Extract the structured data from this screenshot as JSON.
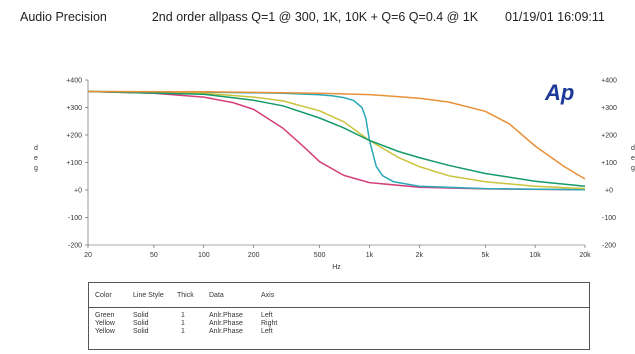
{
  "header": {
    "left": "Audio Precision",
    "title": "2nd order allpass Q=1 @ 300, 1K, 10K + Q=6  Q=0.4 @ 1K",
    "date": "01/19/01 16:09:11"
  },
  "logo": "Ap",
  "chart_data": {
    "type": "line",
    "title": "2nd order allpass Q=1 @ 300, 1K, 10K + Q=6  Q=0.4 @ 1K",
    "xlabel": "Hz",
    "ylabel": "d e g",
    "right_ylabel": "d e g",
    "xscale": "log",
    "xlim": [
      20,
      20000
    ],
    "ylim": [
      -200,
      400
    ],
    "x_ticks": [
      20,
      50,
      100,
      200,
      500,
      1000,
      2000,
      5000,
      10000,
      20000
    ],
    "x_tick_labels": [
      "20",
      "50",
      "100",
      "200",
      "500",
      "1k",
      "2k",
      "5k",
      "10k",
      "20k"
    ],
    "y_ticks": [
      -200,
      -100,
      0,
      100,
      200,
      300,
      400
    ],
    "y_tick_labels": [
      "-200",
      "-100",
      "+0",
      "+100",
      "+200",
      "+300",
      "+400"
    ],
    "right_y_tick_labels": [
      "-200",
      "-100",
      "+0",
      "+100",
      "+200",
      "+300",
      "+400"
    ],
    "grid": false,
    "series": [
      {
        "color": "#d4407a",
        "x": [
          20,
          50,
          100,
          150,
          200,
          300,
          400,
          500,
          700,
          1000,
          2000,
          5000,
          20000
        ],
        "y": [
          358,
          352,
          338,
          318,
          293,
          225,
          158,
          103,
          53,
          27,
          10,
          4,
          1
        ]
      },
      {
        "color": "#2ba8b8",
        "x": [
          20,
          100,
          300,
          500,
          600,
          700,
          800,
          900,
          950,
          1000,
          1100,
          1200,
          1400,
          2000,
          5000,
          20000
        ],
        "y": [
          358,
          356,
          352,
          346,
          342,
          336,
          326,
          300,
          262,
          180,
          85,
          52,
          30,
          14,
          5,
          1
        ]
      },
      {
        "color": "#c9c43c",
        "x": [
          20,
          100,
          200,
          300,
          500,
          700,
          1000,
          1500,
          2000,
          3000,
          5000,
          10000,
          20000
        ],
        "y": [
          358,
          352,
          338,
          324,
          288,
          248,
          180,
          118,
          85,
          52,
          30,
          14,
          5
        ]
      },
      {
        "color": "#159a6a",
        "x": [
          20,
          100,
          200,
          300,
          500,
          700,
          1000,
          1500,
          2000,
          3000,
          5000,
          10000,
          20000
        ],
        "y": [
          358,
          348,
          326,
          306,
          262,
          226,
          180,
          140,
          118,
          90,
          60,
          32,
          14
        ]
      },
      {
        "color": "#e8903a",
        "x": [
          20,
          100,
          500,
          1000,
          2000,
          3000,
          5000,
          7000,
          10000,
          15000,
          20000
        ],
        "y": [
          358,
          357,
          352,
          347,
          334,
          320,
          286,
          240,
          160,
          85,
          40
        ]
      }
    ]
  },
  "legend": {
    "headers": [
      "Color",
      "Line Style",
      "Thick",
      "Data",
      "Axis"
    ],
    "rows": [
      [
        "Green",
        "Solid",
        "1",
        "Anlr.Phase",
        "Left"
      ],
      [
        "Yellow",
        "Solid",
        "1",
        "Anlr.Phase",
        "Right"
      ],
      [
        "Yellow",
        "Solid",
        "1",
        "Anlr.Phase",
        "Left"
      ]
    ]
  },
  "colors": {
    "axis": "#555555",
    "text": "#333333",
    "logo": "#1d3a9a"
  }
}
